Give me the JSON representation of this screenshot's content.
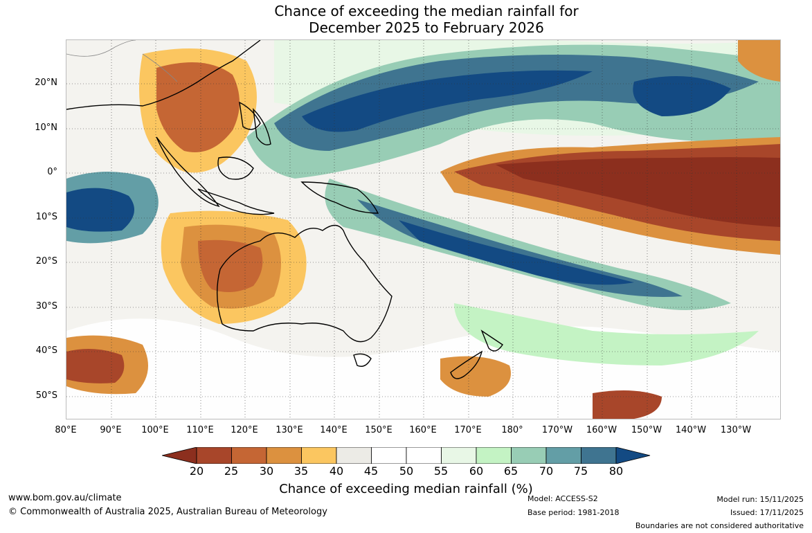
{
  "title_line1": "Chance of exceeding the median rainfall for",
  "title_line2": "December 2025 to February 2026",
  "lat_labels": [
    "20°N",
    "10°N",
    "0°",
    "10°S",
    "20°S",
    "30°S",
    "40°S",
    "50°S"
  ],
  "lon_labels": [
    "80°E",
    "90°E",
    "100°E",
    "110°E",
    "120°E",
    "130°E",
    "140°E",
    "150°E",
    "160°E",
    "170°E",
    "180°",
    "170°W",
    "160°W",
    "150°W",
    "140°W",
    "130°W"
  ],
  "colorbar": {
    "ticks": [
      "20",
      "25",
      "30",
      "35",
      "40",
      "45",
      "50",
      "55",
      "60",
      "65",
      "70",
      "75",
      "80"
    ],
    "colors": [
      "#8c2f1e",
      "#a8462a",
      "#c56634",
      "#dc913f",
      "#fbc660",
      "#ecebe6",
      "#ffffff",
      "#ffffff",
      "#e8f7e6",
      "#c4f3c4",
      "#98cdb5",
      "#639ea6",
      "#3f7490",
      "#134a83"
    ],
    "title": "Chance of exceeding median rainfall (%)"
  },
  "footer": {
    "url": "www.bom.gov.au/climate",
    "copyright": "© Commonwealth of Australia 2025, Australian Bureau of Meteorology",
    "model": "Model: ACCESS-S2",
    "base_period": "Base period: 1981-2018",
    "model_run": "Model run: 15/11/2025",
    "issued": "Issued: 17/11/2025",
    "disclaimer": "Boundaries are not considered authoritative"
  }
}
